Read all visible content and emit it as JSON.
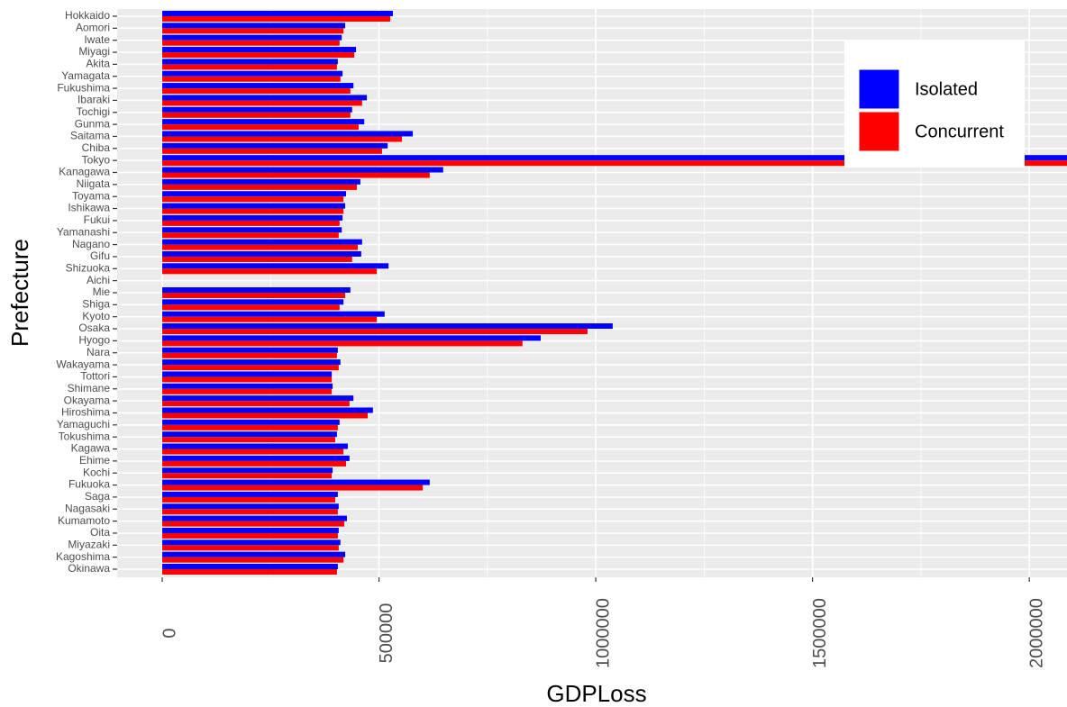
{
  "chart_data": {
    "type": "bar",
    "orientation": "horizontal",
    "x_label": "GDPLoss",
    "y_label": "Prefecture",
    "categories": [
      "Hokkaido",
      "Aomori",
      "Iwate",
      "Miyagi",
      "Akita",
      "Yamagata",
      "Fukushima",
      "Ibaraki",
      "Tochigi",
      "Gunma",
      "Saitama",
      "Chiba",
      "Tokyo",
      "Kanagawa",
      "Niigata",
      "Toyama",
      "Ishikawa",
      "Fukui",
      "Yamanashi",
      "Nagano",
      "Gifu",
      "Shizuoka",
      "Aichi",
      "Mie",
      "Shiga",
      "Kyoto",
      "Osaka",
      "Hyogo",
      "Nara",
      "Wakayama",
      "Tottori",
      "Shimane",
      "Okayama",
      "Hiroshima",
      "Yamaguchi",
      "Tokushima",
      "Kagawa",
      "Ehime",
      "Kochi",
      "Fukuoka",
      "Saga",
      "Nagasaki",
      "Kumamoto",
      "Oita",
      "Miyazaki",
      "Kagoshima",
      "Okinawa"
    ],
    "series": [
      {
        "name": "Isolated",
        "color": "#0000ff",
        "values": [
          532000,
          422000,
          414000,
          447000,
          405000,
          416000,
          441000,
          472000,
          438000,
          466000,
          578000,
          520000,
          2300000,
          648000,
          457000,
          424000,
          422000,
          416000,
          414000,
          461000,
          459000,
          522000,
          null,
          434000,
          418000,
          513000,
          1039000,
          873000,
          405000,
          411000,
          391000,
          393000,
          441000,
          486000,
          409000,
          403000,
          428000,
          432000,
          393000,
          617000,
          405000,
          407000,
          426000,
          407000,
          411000,
          422000,
          405000
        ]
      },
      {
        "name": "Concurrent",
        "color": "#ff0000",
        "values": [
          526000,
          418000,
          409000,
          443000,
          403000,
          411000,
          434000,
          461000,
          434000,
          453000,
          553000,
          507000,
          2250000,
          617000,
          449000,
          418000,
          418000,
          409000,
          407000,
          451000,
          438000,
          495000,
          null,
          422000,
          409000,
          495000,
          981000,
          831000,
          403000,
          407000,
          391000,
          391000,
          432000,
          474000,
          405000,
          399000,
          418000,
          424000,
          391000,
          601000,
          399000,
          405000,
          420000,
          405000,
          407000,
          418000,
          403000
        ]
      }
    ],
    "xlim": [
      -104000,
      2087000
    ],
    "xticks": [
      0,
      500000,
      1000000,
      1500000,
      2000000
    ],
    "grid": true,
    "legend": "top-right"
  }
}
